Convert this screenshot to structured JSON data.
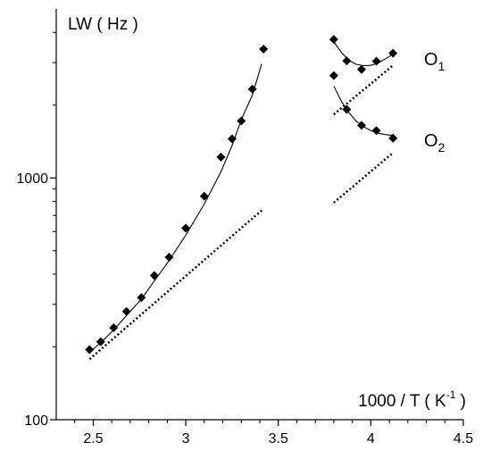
{
  "chart_data": {
    "type": "scatter",
    "title": "",
    "xlabel": "1000 / T ( K-1 )",
    "xlabel_parts": {
      "main": "1000 / T ( K",
      "sup": "-1",
      "end": " )"
    },
    "ylabel": "LW ( Hz )",
    "yscale": "log",
    "xlim": [
      2.3,
      4.5
    ],
    "ylim": [
      100,
      5000
    ],
    "x_ticks": [
      2.5,
      3,
      3.5,
      4,
      4.5
    ],
    "x_tick_labels": [
      "2.5",
      "3",
      "3.5",
      "4",
      "4.5"
    ],
    "y_ticks": [
      100,
      1000
    ],
    "y_tick_labels": [
      "100",
      "1000"
    ],
    "grid": false,
    "series": [
      {
        "name": "",
        "marker": "diamond",
        "x": [
          2.48,
          2.54,
          2.61,
          2.68,
          2.76,
          2.83,
          2.91,
          3.0,
          3.1,
          3.19,
          3.25,
          3.3,
          3.36,
          3.42
        ],
        "y": [
          195,
          210,
          240,
          280,
          320,
          395,
          470,
          620,
          840,
          1220,
          1450,
          1720,
          2330,
          3410
        ],
        "fit": {
          "x": [
            2.48,
            2.54,
            2.61,
            2.68,
            2.76,
            2.83,
            2.91,
            3.0,
            3.1,
            3.19,
            3.25,
            3.3,
            3.36,
            3.41
          ],
          "y": [
            190,
            208,
            235,
            270,
            315,
            375,
            455,
            580,
            780,
            1060,
            1360,
            1740,
            2200,
            2960
          ]
        },
        "dotted": {
          "x": [
            2.48,
            3.42
          ],
          "y": [
            178,
            745
          ]
        }
      },
      {
        "name": "O1",
        "label_sub": "1",
        "marker": "diamond",
        "x": [
          3.8,
          3.87,
          3.95,
          4.03,
          4.12
        ],
        "y": [
          3740,
          3050,
          2810,
          3040,
          3280
        ],
        "fit": {
          "x": [
            3.8,
            3.84,
            3.88,
            3.92,
            3.96,
            4.0,
            4.04,
            4.08,
            4.12
          ],
          "y": [
            3660,
            3310,
            3070,
            2950,
            2910,
            2920,
            2990,
            3110,
            3250
          ]
        },
        "dotted": {
          "x": [
            3.8,
            4.12
          ],
          "y": [
            1830,
            2920
          ]
        }
      },
      {
        "name": "O2",
        "label_sub": "2",
        "marker": "diamond",
        "x": [
          3.8,
          3.87,
          3.95,
          4.03,
          4.12
        ],
        "y": [
          2650,
          1920,
          1650,
          1570,
          1460
        ],
        "fit": {
          "x": [
            3.8,
            3.84,
            3.88,
            3.92,
            3.96,
            4.0,
            4.04,
            4.08,
            4.12
          ],
          "y": [
            2400,
            2080,
            1870,
            1720,
            1630,
            1570,
            1530,
            1510,
            1500
          ]
        },
        "dotted": {
          "x": [
            3.8,
            4.12
          ],
          "y": [
            790,
            1270
          ]
        }
      }
    ]
  }
}
